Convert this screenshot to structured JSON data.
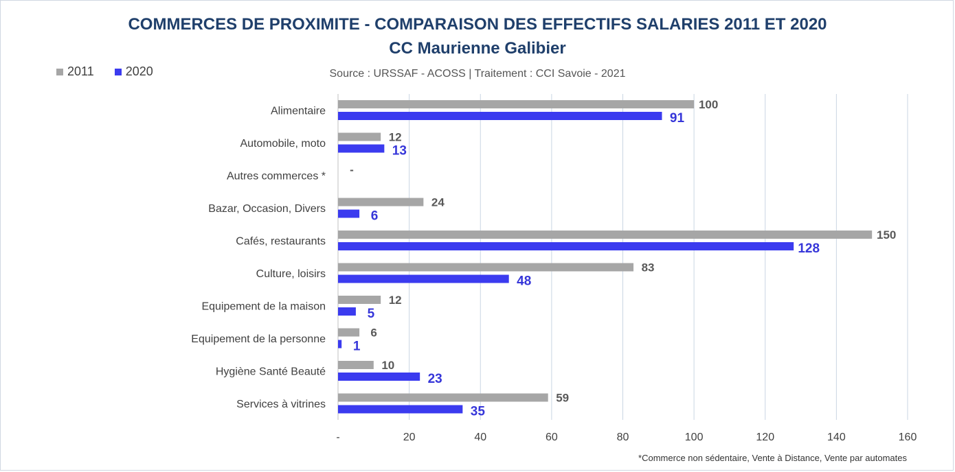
{
  "chart_data": {
    "type": "bar",
    "orientation": "horizontal",
    "title": "COMMERCES DE PROXIMITE - COMPARAISON DES EFFECTIFS SALARIES 2011 ET 2020",
    "subtitle": "CC Maurienne Galibier",
    "source": "Source  : URSSAF - ACOSS  |  Traitement : CCI Savoie - 2021",
    "footnote": "*Commerce non sédentaire, Vente à Distance, Vente par automates",
    "categories": [
      "Alimentaire",
      "Automobile, moto",
      "Autres commerces *",
      "Bazar, Occasion, Divers",
      "Cafés, restaurants",
      "Culture, loisirs",
      "Equipement de la maison",
      "Equipement de la personne",
      "Hygiène Santé Beauté",
      "Services à vitrines"
    ],
    "series": [
      {
        "name": "2011",
        "color": "#a6a6a6",
        "values": [
          100,
          12,
          0,
          24,
          150,
          83,
          12,
          6,
          10,
          59
        ],
        "labels": [
          "100",
          "12",
          "-",
          "24",
          "150",
          "83",
          "12",
          "6",
          "10",
          "59"
        ]
      },
      {
        "name": "2020",
        "color": "#3b3bef",
        "values": [
          91,
          13,
          null,
          6,
          128,
          48,
          5,
          1,
          23,
          35
        ],
        "labels": [
          "91",
          "13",
          "",
          "6",
          "128",
          "48",
          "5",
          "1",
          "23",
          "35"
        ]
      }
    ],
    "xlim": [
      0,
      160
    ],
    "xticks": [
      0,
      20,
      40,
      60,
      80,
      100,
      120,
      140,
      160
    ],
    "xtick_labels": [
      "-",
      "20",
      "40",
      "60",
      "80",
      "100",
      "120",
      "140",
      "160"
    ],
    "xlabel": "",
    "ylabel": "",
    "grid": "vertical",
    "legend": "top-left"
  }
}
